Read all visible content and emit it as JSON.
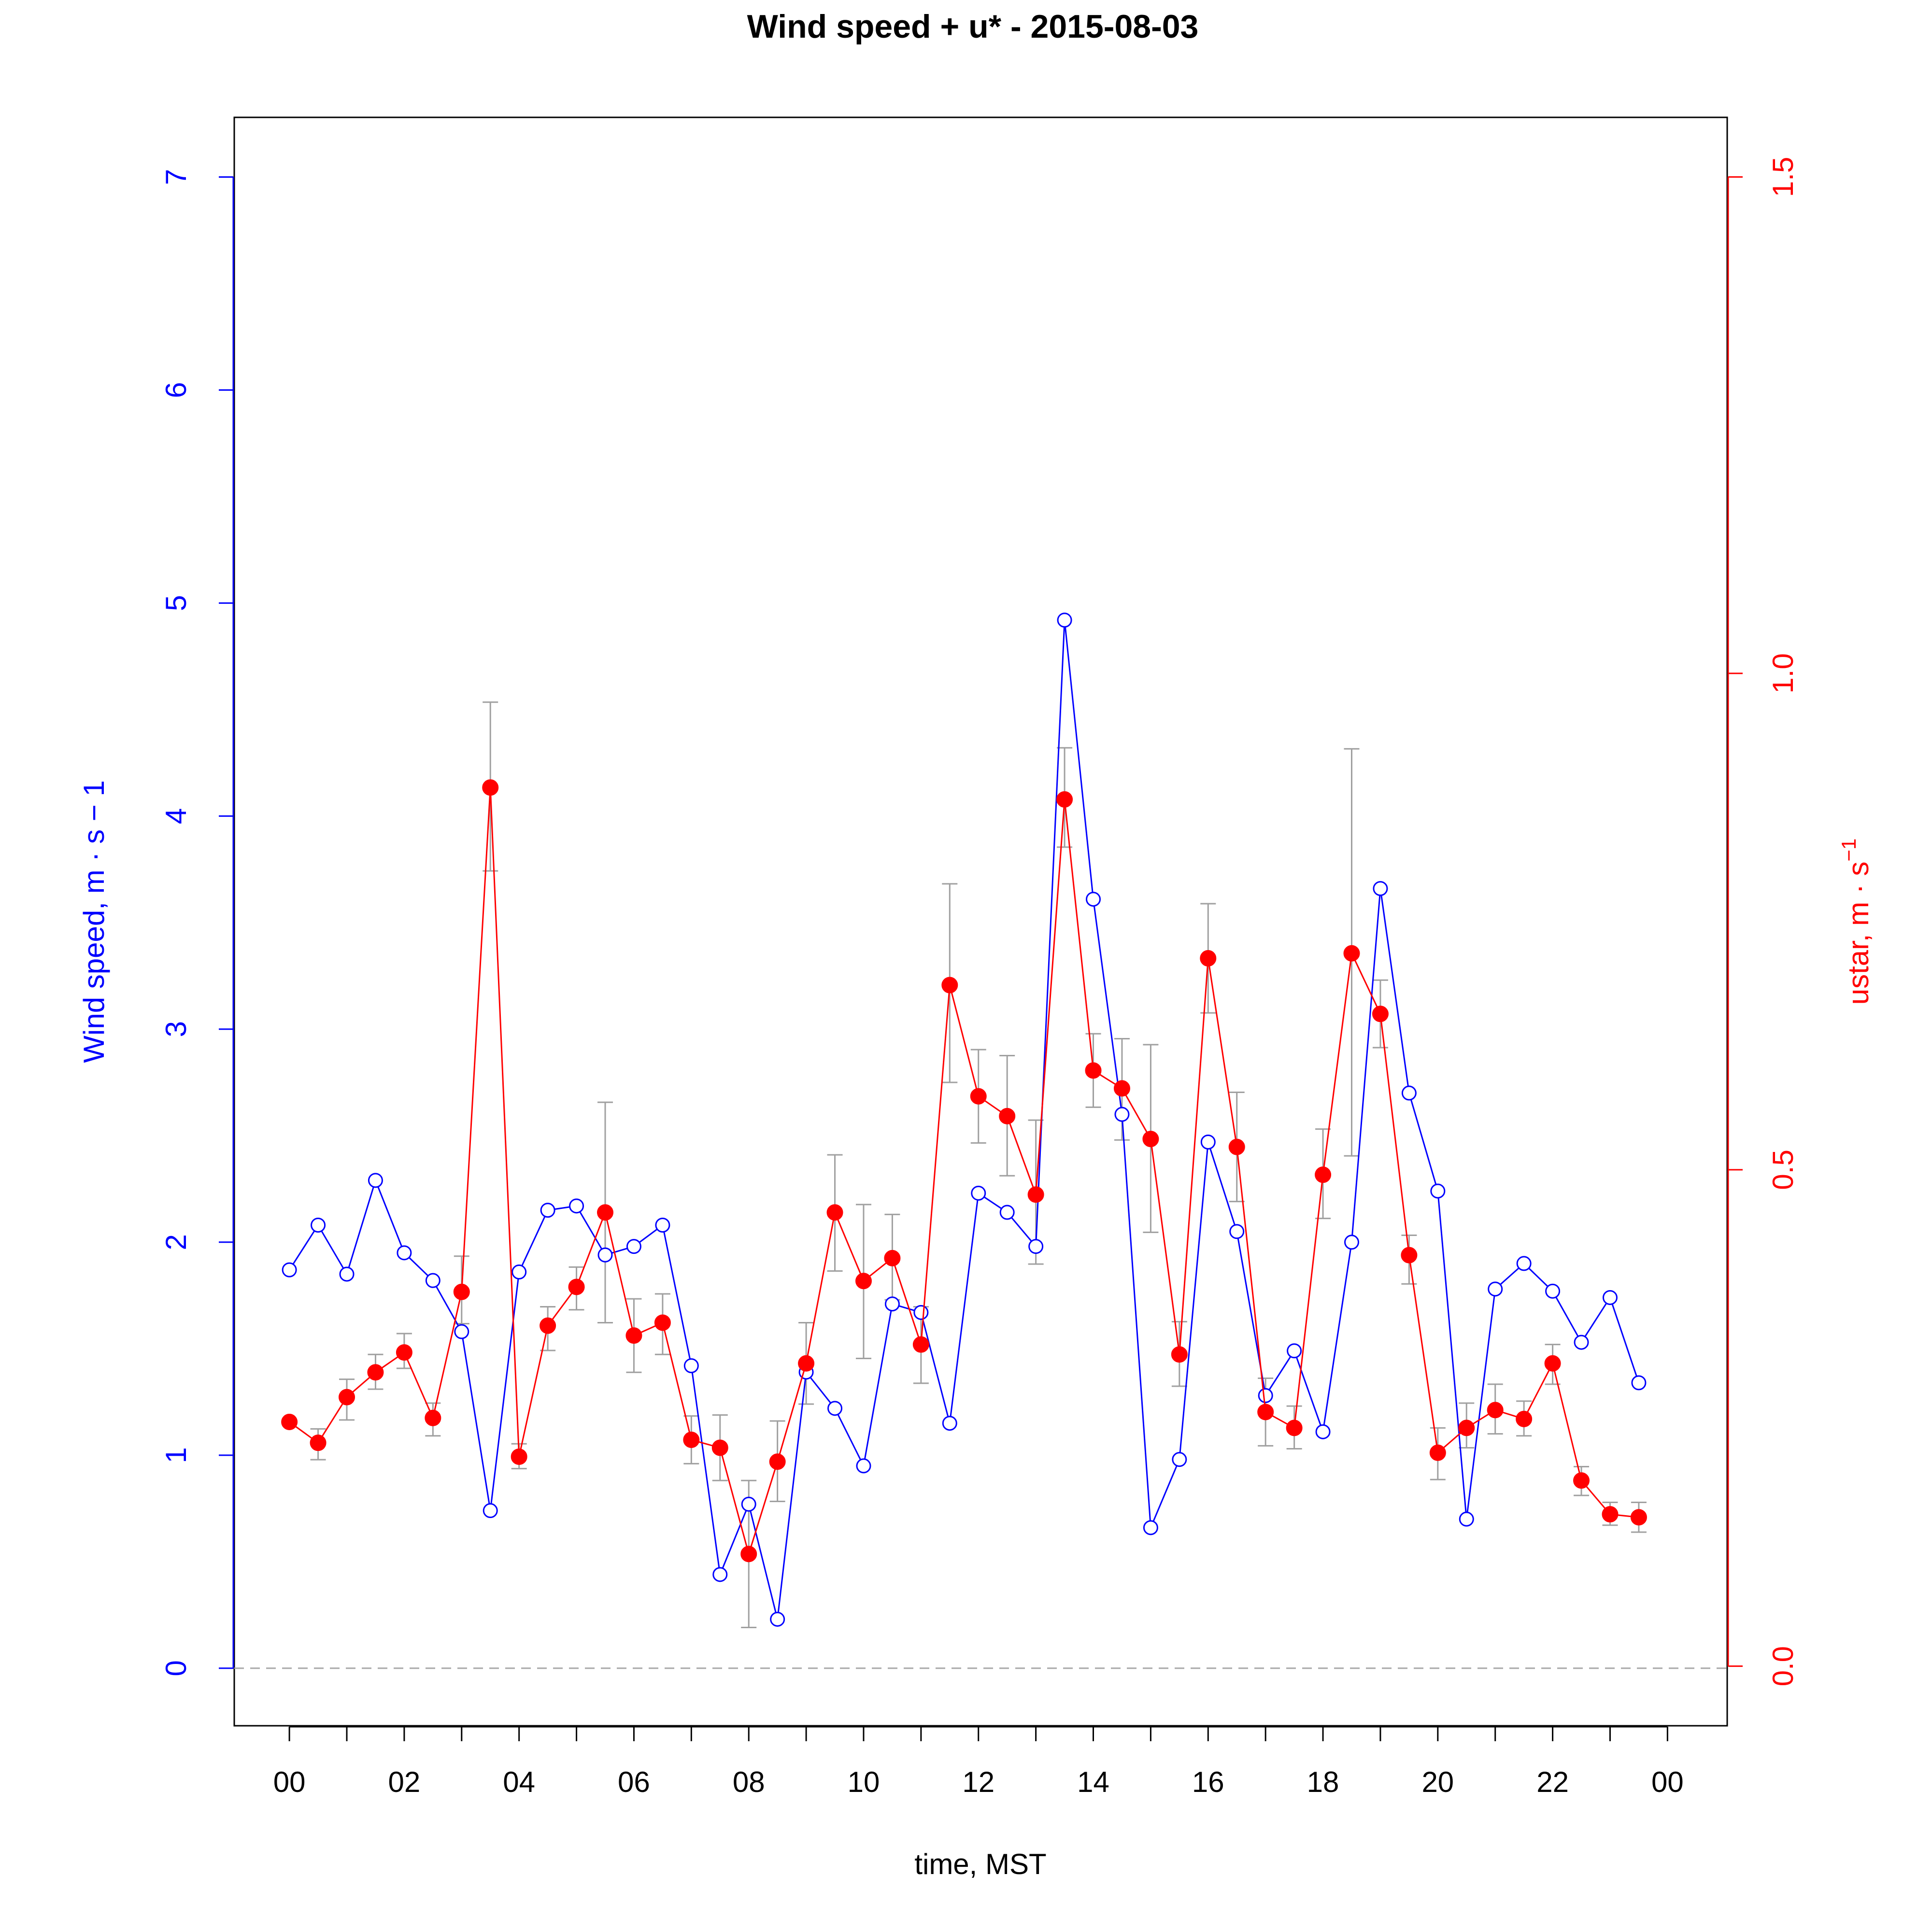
{
  "chart_data": {
    "type": "line",
    "title": "Wind speed + u* -  2015-08-03",
    "xlabel": "time, MST",
    "ylabel_left": "Wind speed, m · s − 1",
    "ylabel_right_base": "ustar, m · s",
    "ylabel_right_sup": "−1",
    "x_range_hours": [
      -0.96,
      25.04
    ],
    "x_ticks_hours": [
      0,
      1,
      2,
      3,
      4,
      5,
      6,
      7,
      8,
      9,
      10,
      11,
      12,
      13,
      14,
      15,
      16,
      17,
      18,
      19,
      20,
      21,
      22,
      23,
      24
    ],
    "x_tick_labels": [
      "00",
      "02",
      "04",
      "06",
      "08",
      "10",
      "12",
      "14",
      "16",
      "18",
      "20",
      "22",
      "00"
    ],
    "y_left_range": [
      -0.27,
      7.28
    ],
    "y_left_ticks": [
      0,
      1,
      2,
      3,
      4,
      5,
      6,
      7
    ],
    "y_left_tick_labels": [
      "0",
      "1",
      "2",
      "3",
      "4",
      "5",
      "6",
      "7"
    ],
    "y_right_range": [
      -0.06,
      1.56
    ],
    "y_right_ticks": [
      0.0,
      0.5,
      1.0,
      1.5
    ],
    "y_right_tick_labels": [
      "0.0",
      "0.5",
      "1.0",
      "1.5"
    ],
    "zero_line": true,
    "colors": {
      "wind": "#0000ff",
      "ustar": "#ff0000",
      "error_bars": "#a0a0a0",
      "zero_line": "#a8a8a8",
      "axis": "#000000"
    },
    "series": [
      {
        "name": "Wind speed",
        "axis": "left",
        "marker": "open-circle",
        "x": [
          0,
          0.5,
          1,
          1.5,
          2,
          2.5,
          3,
          3.5,
          4,
          4.5,
          5,
          5.5,
          6,
          6.5,
          7,
          7.5,
          8,
          8.5,
          9,
          9.5,
          10,
          10.5,
          11,
          11.5,
          12,
          12.5,
          13,
          13.5,
          14,
          14.5,
          15,
          15.5,
          16,
          16.5,
          17,
          17.5,
          18,
          18.5,
          19,
          19.5,
          20,
          20.5,
          21,
          21.5,
          22,
          22.5,
          23,
          23.5
        ],
        "values": [
          1.87,
          2.08,
          1.85,
          2.29,
          1.95,
          1.82,
          1.58,
          0.74,
          1.86,
          2.15,
          2.17,
          1.94,
          1.98,
          2.08,
          1.42,
          0.44,
          0.77,
          0.23,
          1.39,
          1.22,
          0.95,
          1.71,
          1.67,
          1.15,
          2.23,
          2.14,
          1.98,
          4.92,
          3.61,
          2.6,
          0.66,
          0.98,
          2.47,
          2.05,
          1.28,
          1.49,
          1.11,
          2.0,
          3.66,
          2.7,
          2.24,
          0.7,
          1.78,
          1.9,
          1.77,
          1.53,
          1.74,
          1.34
        ]
      },
      {
        "name": "ustar",
        "axis": "right",
        "marker": "filled-circle",
        "x": [
          0,
          0.5,
          1,
          1.5,
          2,
          2.5,
          3,
          3.5,
          4,
          4.5,
          5,
          5.5,
          6,
          6.5,
          7,
          7.5,
          8,
          8.5,
          9,
          9.5,
          10,
          10.5,
          11,
          11.5,
          12,
          12.5,
          13,
          13.5,
          14,
          14.5,
          15,
          15.5,
          16,
          16.5,
          17,
          17.5,
          18,
          18.5,
          19,
          19.5,
          20,
          20.5,
          21,
          21.5,
          22,
          22.5,
          23,
          23.5
        ],
        "values": [
          0.246,
          0.225,
          0.271,
          0.296,
          0.316,
          0.25,
          0.377,
          0.885,
          0.211,
          0.343,
          0.382,
          0.457,
          0.333,
          0.346,
          0.228,
          0.22,
          0.113,
          0.206,
          0.305,
          0.457,
          0.388,
          0.411,
          0.324,
          0.686,
          0.574,
          0.554,
          0.475,
          0.873,
          0.6,
          0.582,
          0.531,
          0.314,
          0.713,
          0.523,
          0.256,
          0.24,
          0.495,
          0.718,
          0.657,
          0.414,
          0.215,
          0.24,
          0.258,
          0.249,
          0.305,
          0.187,
          0.153,
          0.15
        ],
        "error_bar_low": [
          0.246,
          0.208,
          0.248,
          0.279,
          0.3,
          0.232,
          0.345,
          0.801,
          0.199,
          0.318,
          0.359,
          0.346,
          0.296,
          0.314,
          0.204,
          0.187,
          0.039,
          0.166,
          0.264,
          0.398,
          0.31,
          0.369,
          0.285,
          0.588,
          0.527,
          0.494,
          0.405,
          0.825,
          0.563,
          0.53,
          0.437,
          0.282,
          0.658,
          0.468,
          0.222,
          0.219,
          0.451,
          0.514,
          0.623,
          0.385,
          0.188,
          0.22,
          0.234,
          0.232,
          0.284,
          0.172,
          0.142,
          0.135
        ],
        "error_bar_high": [
          0.246,
          0.239,
          0.289,
          0.314,
          0.335,
          0.265,
          0.413,
          0.971,
          0.224,
          0.362,
          0.402,
          0.568,
          0.37,
          0.375,
          0.252,
          0.253,
          0.187,
          0.247,
          0.346,
          0.515,
          0.465,
          0.455,
          0.362,
          0.788,
          0.621,
          0.615,
          0.55,
          0.925,
          0.637,
          0.632,
          0.626,
          0.347,
          0.768,
          0.578,
          0.29,
          0.262,
          0.541,
          0.924,
          0.691,
          0.434,
          0.24,
          0.265,
          0.284,
          0.267,
          0.324,
          0.201,
          0.165,
          0.165
        ]
      }
    ]
  }
}
